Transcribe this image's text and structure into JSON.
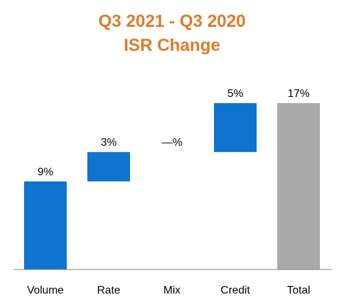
{
  "chart_data": {
    "type": "bar",
    "title": "Q3 2021 - Q3 2020",
    "subtitle": "ISR Change",
    "categories": [
      "Volume",
      "Rate",
      "Mix",
      "Credit",
      "Total"
    ],
    "values": [
      9,
      3,
      0,
      5,
      17
    ],
    "data_labels": [
      "9%",
      "3%",
      "—%",
      "5%",
      "17%"
    ],
    "bar_kinds": [
      "increase",
      "increase",
      "increase",
      "increase",
      "total"
    ],
    "ylim": [
      0,
      20
    ],
    "grid": false,
    "legend": "none",
    "colors": {
      "increase": "#0f74cf",
      "total": "#a9a9a9",
      "title": "#e07a2a",
      "axis": "#7f7f7f"
    }
  }
}
